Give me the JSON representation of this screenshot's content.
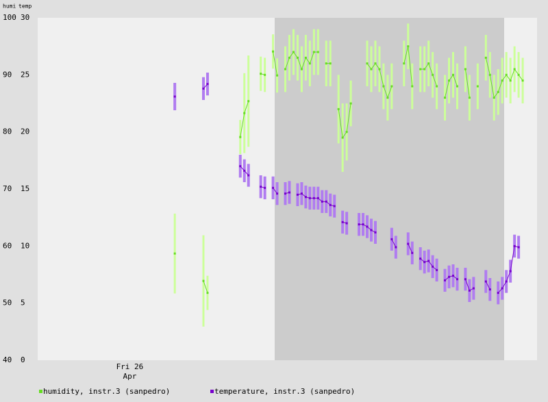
{
  "chart_data": {
    "type": "line",
    "y_label": "humi",
    "y2_label": "temp",
    "categories": [
      null,
      null,
      null,
      null,
      null,
      null,
      null,
      null,
      null,
      null,
      null,
      null,
      null,
      null,
      null,
      null,
      null,
      null,
      null,
      null,
      null,
      null,
      [
        "Fri 26",
        "Apr"
      ],
      null,
      null,
      null,
      null,
      null,
      null,
      null,
      null,
      null,
      null,
      null,
      null,
      null,
      null,
      null,
      null,
      null,
      null,
      null,
      null,
      null,
      null,
      null,
      null,
      null,
      null,
      null,
      null,
      null,
      null,
      null,
      null,
      null,
      null,
      null,
      null,
      null,
      null,
      null,
      null,
      null,
      null,
      null,
      null,
      null,
      null,
      null,
      null,
      null,
      null,
      null,
      null,
      null,
      null,
      null,
      null,
      null,
      null,
      null,
      null,
      null,
      null,
      null,
      null,
      null,
      null,
      null,
      null,
      null,
      null,
      null,
      null,
      null,
      null,
      null,
      null,
      null,
      null,
      null,
      null,
      null,
      null,
      null,
      null,
      null,
      null,
      null,
      null,
      null,
      null,
      null,
      null,
      null,
      null,
      null,
      null,
      null,
      null,
      null
    ],
    "ylim": [
      40,
      100
    ],
    "yticks": [
      40,
      50,
      60,
      70,
      80,
      90,
      100
    ],
    "y2lim": [
      0,
      30
    ],
    "y2ticks": [
      0,
      5,
      10,
      15,
      20,
      25,
      30
    ],
    "series": [
      {
        "name": "humidity, instr.3 (sanpedro)",
        "color": "#66dd22",
        "error_color": "#ccff99",
        "values": [
          null,
          null,
          null,
          null,
          null,
          null,
          null,
          null,
          null,
          null,
          null,
          null,
          null,
          null,
          null,
          null,
          null,
          null,
          null,
          null,
          null,
          null,
          null,
          null,
          null,
          null,
          null,
          null,
          null,
          null,
          null,
          null,
          null,
          58.7,
          null,
          null,
          null,
          null,
          null,
          null,
          53.9,
          51.8,
          null,
          null,
          null,
          null,
          null,
          null,
          null,
          79.1,
          83.3,
          85.4,
          null,
          null,
          90.2,
          90.0,
          null,
          94.1,
          89.9,
          null,
          91,
          93,
          94,
          93,
          91,
          93,
          92,
          94,
          94,
          null,
          92,
          92,
          null,
          84,
          79,
          80,
          85,
          null,
          null,
          null,
          92,
          91,
          92,
          91,
          88,
          86,
          88,
          null,
          null,
          92,
          95,
          88,
          null,
          91,
          91,
          92,
          90,
          88,
          null,
          86,
          89,
          90,
          88,
          null,
          91,
          86,
          null,
          88,
          null,
          93,
          90,
          86,
          87,
          89,
          90,
          89,
          91,
          90,
          89,
          null,
          null,
          null
        ],
        "errors": [
          null,
          null,
          null,
          null,
          null,
          null,
          null,
          null,
          null,
          null,
          null,
          null,
          null,
          null,
          null,
          null,
          null,
          null,
          null,
          null,
          null,
          null,
          null,
          null,
          null,
          null,
          null,
          null,
          null,
          null,
          null,
          null,
          null,
          7,
          null,
          null,
          null,
          null,
          null,
          null,
          8,
          3,
          null,
          null,
          null,
          null,
          null,
          null,
          null,
          3,
          7,
          8,
          null,
          null,
          3,
          3,
          null,
          3,
          3,
          null,
          4,
          4,
          4,
          4,
          4,
          4,
          4,
          4,
          4,
          null,
          4,
          4,
          null,
          6,
          6,
          5,
          4,
          null,
          null,
          null,
          4,
          4,
          4,
          4,
          4,
          4,
          4,
          null,
          null,
          4,
          4,
          4,
          null,
          4,
          4,
          4,
          4,
          4,
          null,
          4,
          4,
          4,
          4,
          null,
          4,
          4,
          null,
          4,
          null,
          4,
          4,
          4,
          4,
          4,
          4,
          4,
          4,
          4,
          4,
          null,
          null,
          null
        ]
      },
      {
        "name": "temperature, instr.3 (sanpedro)",
        "color": "#7700cc",
        "error_color": "#b07cf0",
        "axis": "y2",
        "values": [
          null,
          null,
          null,
          null,
          null,
          null,
          null,
          null,
          null,
          null,
          null,
          null,
          null,
          null,
          null,
          null,
          null,
          null,
          null,
          null,
          null,
          null,
          null,
          null,
          null,
          null,
          null,
          null,
          null,
          null,
          null,
          null,
          null,
          23.1,
          null,
          null,
          null,
          null,
          null,
          null,
          23.8,
          24.2,
          null,
          null,
          null,
          null,
          null,
          null,
          null,
          17.0,
          16.6,
          16.2,
          null,
          null,
          15.2,
          15.1,
          null,
          15.1,
          14.6,
          null,
          14.6,
          14.7,
          null,
          14.5,
          14.6,
          14.3,
          14.2,
          14.2,
          14.2,
          13.9,
          13.9,
          13.6,
          13.5,
          null,
          12.1,
          12.0,
          null,
          null,
          11.9,
          11.9,
          11.7,
          11.4,
          11.2,
          null,
          null,
          null,
          10.6,
          9.9,
          null,
          null,
          10.2,
          9.4,
          null,
          8.9,
          8.6,
          8.7,
          8.2,
          7.9,
          null,
          7.0,
          7.3,
          7.4,
          7.1,
          null,
          7.1,
          6.1,
          6.3,
          null,
          null,
          6.9,
          6.2,
          null,
          5.9,
          6.3,
          6.9,
          7.8,
          10.0,
          9.9,
          null,
          null,
          null,
          null
        ],
        "errors": [
          null,
          null,
          null,
          null,
          null,
          null,
          null,
          null,
          null,
          null,
          null,
          null,
          null,
          null,
          null,
          null,
          null,
          null,
          null,
          null,
          null,
          null,
          null,
          null,
          null,
          null,
          null,
          null,
          null,
          null,
          null,
          null,
          null,
          1.2,
          null,
          null,
          null,
          null,
          null,
          null,
          1,
          1,
          null,
          null,
          null,
          null,
          null,
          null,
          null,
          1,
          1,
          1,
          null,
          null,
          1,
          1,
          null,
          1,
          1,
          null,
          1,
          1,
          null,
          1,
          1,
          1,
          1,
          1,
          1,
          1,
          1,
          1,
          1,
          null,
          1,
          1,
          null,
          null,
          1,
          1,
          1,
          1,
          1,
          null,
          null,
          null,
          1,
          1,
          null,
          null,
          1,
          1,
          null,
          1,
          1,
          1,
          1,
          1,
          null,
          1,
          1,
          1,
          1,
          null,
          1,
          1,
          1,
          null,
          null,
          1,
          1,
          null,
          1,
          1,
          1,
          1,
          1,
          1,
          null,
          null,
          null,
          null
        ]
      }
    ]
  }
}
